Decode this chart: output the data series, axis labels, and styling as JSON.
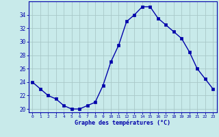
{
  "hours": [
    0,
    1,
    2,
    3,
    4,
    5,
    6,
    7,
    8,
    9,
    10,
    11,
    12,
    13,
    14,
    15,
    16,
    17,
    18,
    19,
    20,
    21,
    22,
    23
  ],
  "temps": [
    24,
    23,
    22,
    21.5,
    20.5,
    20,
    20,
    20.5,
    21,
    23.5,
    27,
    29.5,
    33,
    34,
    35.2,
    35.2,
    33.5,
    32.5,
    31.5,
    30.5,
    28.5,
    26,
    24.5,
    23
  ],
  "line_color": "#0000aa",
  "marker": "s",
  "marker_size": 2.5,
  "bg_color": "#c8eaea",
  "grid_color": "#a8c8c8",
  "xlabel": "Graphe des températures (°C)",
  "xlabel_color": "#0000aa",
  "tick_color": "#0000aa",
  "ylim": [
    19.5,
    36
  ],
  "yticks": [
    20,
    22,
    24,
    26,
    28,
    30,
    32,
    34
  ],
  "xlim": [
    -0.5,
    23.5
  ],
  "axis_bg": "#c8eaea"
}
